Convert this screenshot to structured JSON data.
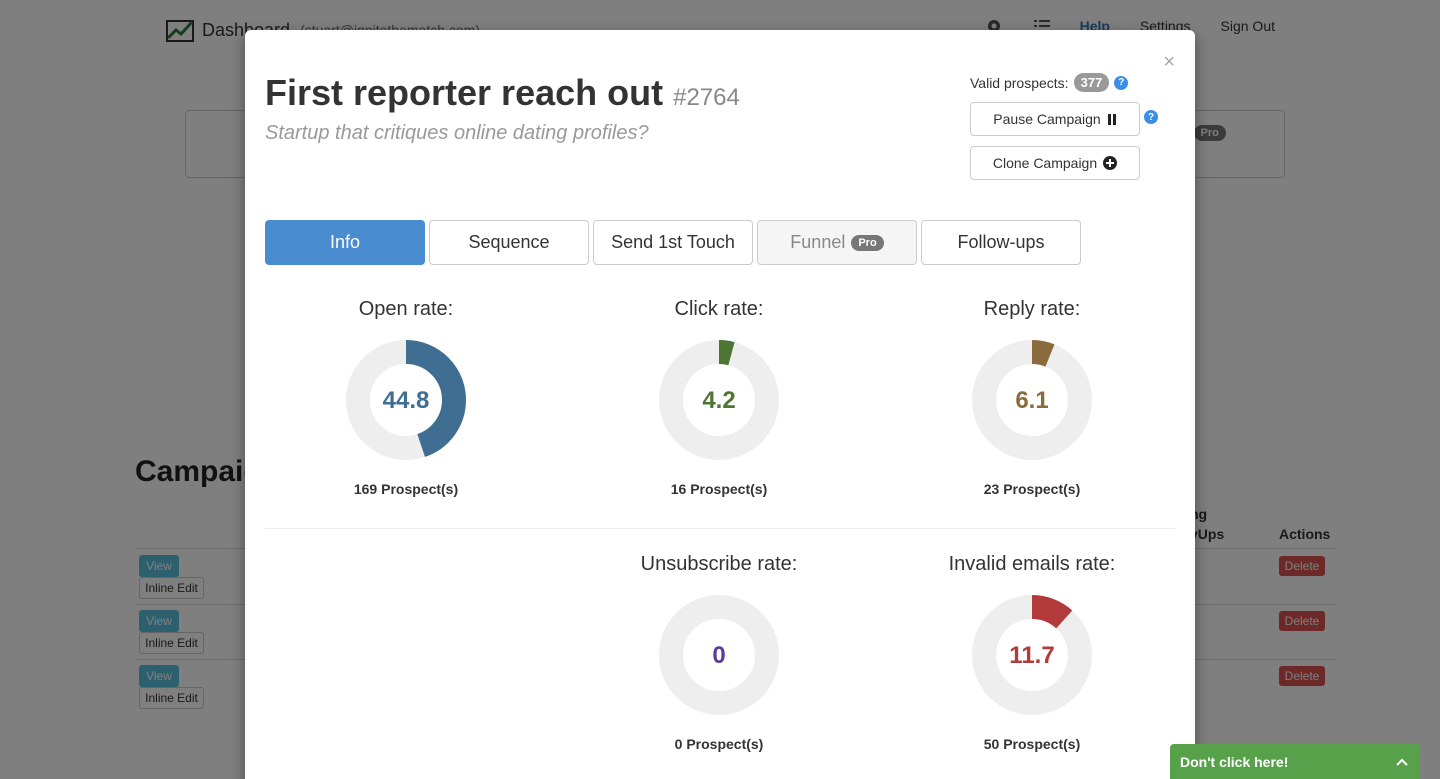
{
  "background": {
    "brand": "Dashboard",
    "user_email": "(stuart@ignitethematch.com)",
    "nav": {
      "help": "Help",
      "settings": "Settings",
      "sign_out": "Sign Out"
    },
    "pro_label_suffix": "s",
    "pro_badge": "Pro",
    "section_title": "Campaigns",
    "table_headers": {
      "followups_line1": "ng",
      "followups_line2": "vUps",
      "actions": "Actions"
    },
    "row_buttons": {
      "view": "View",
      "inline_edit": "Inline Edit",
      "delete": "Delete"
    }
  },
  "modal": {
    "title": "First reporter reach out",
    "campaign_id": "#2764",
    "subtitle": "Startup that critiques online dating profiles?",
    "close": "×",
    "valid_prospects_label": "Valid prospects:",
    "valid_prospects_count": "377",
    "help_glyph": "?",
    "pause_label": "Pause Campaign",
    "clone_label": "Clone Campaign",
    "tabs": [
      {
        "label": "Info",
        "state": "active"
      },
      {
        "label": "Sequence",
        "state": "normal"
      },
      {
        "label": "Send 1st Touch",
        "state": "normal"
      },
      {
        "label": "Funnel",
        "state": "disabled",
        "badge": "Pro"
      },
      {
        "label": "Follow-ups",
        "state": "normal"
      }
    ],
    "stats": [
      {
        "label": "Open rate:",
        "value": "44.8",
        "percent": 44.8,
        "count": "169 Prospect(s)",
        "color": "#3f6e92"
      },
      {
        "label": "Click rate:",
        "value": "4.2",
        "percent": 4.2,
        "count": "16 Prospect(s)",
        "color": "#4d7533"
      },
      {
        "label": "Reply rate:",
        "value": "6.1",
        "percent": 6.1,
        "count": "23 Prospect(s)",
        "color": "#8b6b3d"
      },
      {
        "label": "Unsubscribe rate:",
        "value": "0",
        "percent": 0,
        "count": "0 Prospect(s)",
        "color": "#5b3a99"
      },
      {
        "label": "Invalid emails rate:",
        "value": "11.7",
        "percent": 11.7,
        "count": "50 Prospect(s)",
        "color": "#b33a3a"
      }
    ]
  },
  "toast": {
    "label": "Don't click here!",
    "chevron": "^"
  }
}
